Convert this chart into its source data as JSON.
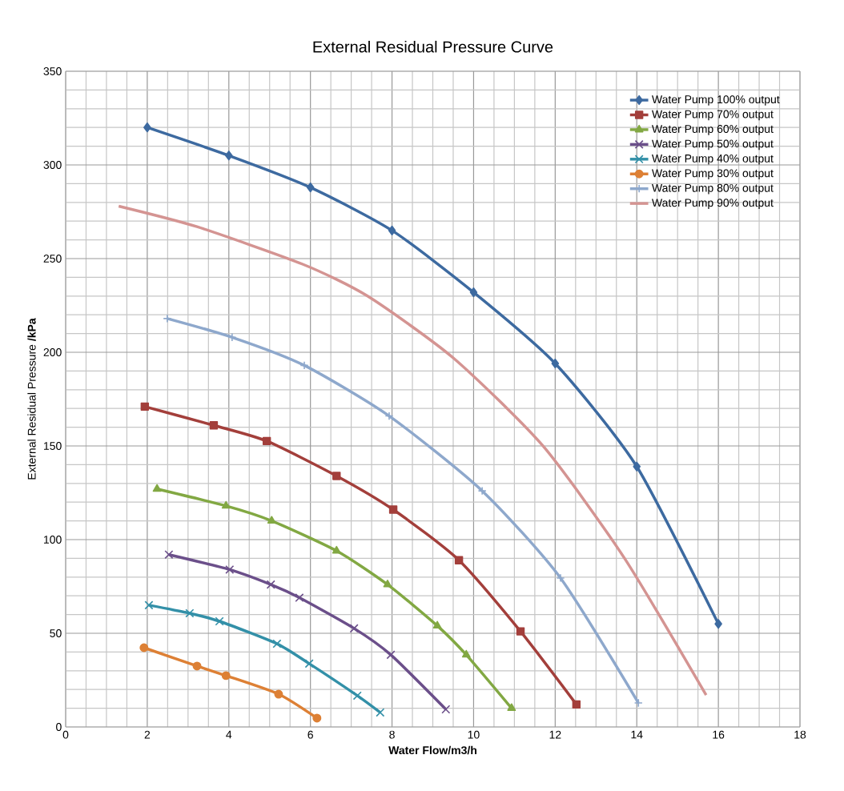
{
  "chart_data": {
    "type": "line",
    "title": "External Residual Pressure Curve",
    "xlabel": "Water Flow/m3/h",
    "ylabel": "External Residual Pressure **/kPa**",
    "xlim": [
      0,
      18
    ],
    "xticks": [
      0,
      2,
      4,
      6,
      8,
      10,
      12,
      14,
      16,
      18
    ],
    "ylim": [
      0,
      350
    ],
    "yticks": [
      0,
      50,
      100,
      150,
      200,
      250,
      300,
      350
    ],
    "grid": true,
    "legend": "top right",
    "series": [
      {
        "name": "Water Pump 100% output",
        "color": "#3d6aa0",
        "marker": "diamond",
        "x": [
          2,
          4,
          6,
          8,
          10,
          12,
          14,
          16
        ],
        "values": [
          320,
          305,
          288,
          265,
          232,
          194,
          139,
          55
        ]
      },
      {
        "name": "Water Pump 70% output",
        "color": "#a33f3b",
        "marker": "square",
        "x": [
          1.94,
          3.63,
          4.93,
          6.64,
          8.03,
          9.64,
          11.15,
          12.52
        ],
        "values": [
          171,
          161,
          152.6,
          134,
          116,
          89,
          51,
          12
        ]
      },
      {
        "name": "Water Pump 60% output",
        "color": "#82a843",
        "marker": "triangle",
        "x": [
          2.24,
          3.93,
          5.05,
          6.64,
          7.89,
          9.11,
          9.82,
          10.93
        ],
        "values": [
          127,
          118,
          110,
          94,
          76,
          54,
          38.5,
          10
        ]
      },
      {
        "name": "Water Pump 50% output",
        "color": "#6b4f8a",
        "marker": "cross",
        "x": [
          2.53,
          4.02,
          5.03,
          5.73,
          7.07,
          7.97,
          9.32
        ],
        "values": [
          92,
          84,
          76,
          69,
          52.6,
          38.5,
          9.4
        ]
      },
      {
        "name": "Water Pump 40% output",
        "color": "#3390a8",
        "marker": "cross",
        "x": [
          2.04,
          3.04,
          3.77,
          5.18,
          5.97,
          7.15,
          7.71
        ],
        "values": [
          65,
          60.7,
          56.4,
          44.4,
          33.8,
          16.7,
          7.7
        ]
      },
      {
        "name": "Water Pump 30% output",
        "color": "#dd8035",
        "marker": "circle",
        "x": [
          1.92,
          3.22,
          3.93,
          5.22,
          6.16
        ],
        "values": [
          42.3,
          32.5,
          27.4,
          17.5,
          4.7
        ]
      },
      {
        "name": "Water Pump 80% output",
        "color": "#8ea8cc",
        "marker": "plus",
        "x": [
          2.49,
          4.08,
          5.85,
          7.93,
          10.21,
          12.13,
          14.04
        ],
        "values": [
          218,
          208,
          193,
          166,
          126,
          79.5,
          12.8
        ]
      },
      {
        "name": "Water Pump 90% output",
        "color": "#d49492",
        "marker": "none",
        "x": [
          1.3,
          3.22,
          5.81,
          7.4,
          9.5,
          11.7,
          13.7,
          15.7
        ],
        "values": [
          278,
          267,
          247,
          230,
          197,
          150,
          90,
          17
        ]
      }
    ]
  }
}
